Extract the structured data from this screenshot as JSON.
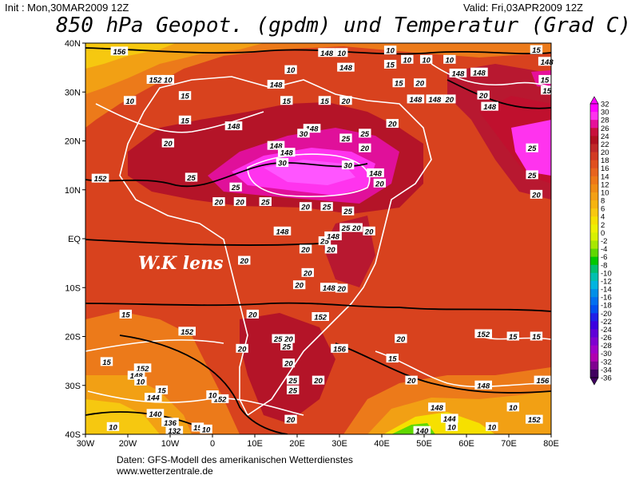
{
  "header": {
    "init": "Init : Mon,30MAR2009 12Z",
    "valid": "Valid: Fri,03APR2009 12Z",
    "title": "850 hPa Geopot. (gpdm) und Temperatur (Grad C)"
  },
  "map": {
    "lat_labels": [
      "40N",
      "30N",
      "20N",
      "10N",
      "EQ",
      "10S",
      "20S",
      "30S",
      "40S"
    ],
    "lon_labels": [
      "30W",
      "20W",
      "10W",
      "0",
      "10E",
      "20E",
      "30E",
      "40E",
      "50E",
      "60E",
      "70E",
      "80E"
    ],
    "watermark": "W.K lens",
    "contour_labels": [
      {
        "text": "156",
        "lon": -22,
        "lat": 38.3
      },
      {
        "text": "152",
        "lon": -13.5,
        "lat": 32.5
      },
      {
        "text": "10",
        "lon": -10.5,
        "lat": 32.5
      },
      {
        "text": "15",
        "lon": -6.5,
        "lat": 29.2
      },
      {
        "text": "10",
        "lon": -19.5,
        "lat": 28.2
      },
      {
        "text": "15",
        "lon": -6.5,
        "lat": 24.2
      },
      {
        "text": "20",
        "lon": -10.5,
        "lat": 19.5
      },
      {
        "text": "148",
        "lon": 5,
        "lat": 23
      },
      {
        "text": "148",
        "lon": 15,
        "lat": 31.5
      },
      {
        "text": "10",
        "lon": 18.5,
        "lat": 34.5
      },
      {
        "text": "148",
        "lon": 27,
        "lat": 38
      },
      {
        "text": "148",
        "lon": 31.5,
        "lat": 35
      },
      {
        "text": "10",
        "lon": 30.5,
        "lat": 38
      },
      {
        "text": "148",
        "lon": 23.5,
        "lat": 22.5
      },
      {
        "text": "148",
        "lon": 15,
        "lat": 19
      },
      {
        "text": "148",
        "lon": 17.5,
        "lat": 17.6
      },
      {
        "text": "30",
        "lon": 21.5,
        "lat": 21.5
      },
      {
        "text": "25",
        "lon": 31.5,
        "lat": 20.5
      },
      {
        "text": "25",
        "lon": 36,
        "lat": 21.5
      },
      {
        "text": "20",
        "lon": 31.5,
        "lat": 28.2
      },
      {
        "text": "15",
        "lon": 17.5,
        "lat": 28.2
      },
      {
        "text": "15",
        "lon": 26.5,
        "lat": 28.2
      },
      {
        "text": "20",
        "lon": 36,
        "lat": 18.5
      },
      {
        "text": "30",
        "lon": 16.5,
        "lat": 15.5
      },
      {
        "text": "30",
        "lon": 32,
        "lat": 15
      },
      {
        "text": "148",
        "lon": 38.5,
        "lat": 13.4
      },
      {
        "text": "20",
        "lon": 39.5,
        "lat": 11.3
      },
      {
        "text": "152",
        "lon": -26.5,
        "lat": 12.3
      },
      {
        "text": "25",
        "lon": -5,
        "lat": 12.5
      },
      {
        "text": "25",
        "lon": 5.5,
        "lat": 10.5
      },
      {
        "text": "20",
        "lon": 1.5,
        "lat": 7.5
      },
      {
        "text": "20",
        "lon": 6.5,
        "lat": 7.5
      },
      {
        "text": "25",
        "lon": 12.5,
        "lat": 7.5
      },
      {
        "text": "20",
        "lon": 22,
        "lat": 6.5
      },
      {
        "text": "25",
        "lon": 27,
        "lat": 6.5
      },
      {
        "text": "25",
        "lon": 32,
        "lat": 5.6
      },
      {
        "text": "20",
        "lon": 34,
        "lat": 2.2
      },
      {
        "text": "25",
        "lon": 31.5,
        "lat": 2.2
      },
      {
        "text": "20",
        "lon": 37,
        "lat": 1.5
      },
      {
        "text": "148",
        "lon": 16.5,
        "lat": 1.5
      },
      {
        "text": "25",
        "lon": 26.5,
        "lat": -0.5
      },
      {
        "text": "148",
        "lon": 28.5,
        "lat": 0.5
      },
      {
        "text": "20",
        "lon": 22,
        "lat": -2.2
      },
      {
        "text": "20",
        "lon": 28,
        "lat": -2.2
      },
      {
        "text": "20",
        "lon": 7.5,
        "lat": -4.5
      },
      {
        "text": "20",
        "lon": 22.5,
        "lat": -7
      },
      {
        "text": "20",
        "lon": 20.5,
        "lat": -9.5
      },
      {
        "text": "148",
        "lon": 27.5,
        "lat": -10
      },
      {
        "text": "20",
        "lon": 30.5,
        "lat": -10.2
      },
      {
        "text": "15",
        "lon": -20.5,
        "lat": -15.5
      },
      {
        "text": "20",
        "lon": 9.5,
        "lat": -15.5
      },
      {
        "text": "152",
        "lon": 25.5,
        "lat": -16
      },
      {
        "text": "152",
        "lon": -6,
        "lat": -19
      },
      {
        "text": "25",
        "lon": 15.5,
        "lat": -20.5
      },
      {
        "text": "20",
        "lon": 18,
        "lat": -20.5
      },
      {
        "text": "25",
        "lon": 17.5,
        "lat": -22
      },
      {
        "text": "20",
        "lon": 7,
        "lat": -22.5
      },
      {
        "text": "156",
        "lon": 30,
        "lat": -22.5
      },
      {
        "text": "20",
        "lon": 44.5,
        "lat": -20.5
      },
      {
        "text": "15",
        "lon": 42.5,
        "lat": -24.5
      },
      {
        "text": "15",
        "lon": -25,
        "lat": -25.2
      },
      {
        "text": "20",
        "lon": 18,
        "lat": -25.5
      },
      {
        "text": "152",
        "lon": 64,
        "lat": -19.5
      },
      {
        "text": "15",
        "lon": 71,
        "lat": -20
      },
      {
        "text": "15",
        "lon": 76.5,
        "lat": -20
      },
      {
        "text": "152",
        "lon": -16.5,
        "lat": -26.5
      },
      {
        "text": "148",
        "lon": -18,
        "lat": -28
      },
      {
        "text": "25",
        "lon": 19,
        "lat": -29
      },
      {
        "text": "20",
        "lon": 25,
        "lat": -29
      },
      {
        "text": "25",
        "lon": 19,
        "lat": -31
      },
      {
        "text": "20",
        "lon": 47,
        "lat": -29
      },
      {
        "text": "15",
        "lon": -12,
        "lat": -31
      },
      {
        "text": "10",
        "lon": -17,
        "lat": -29.2
      },
      {
        "text": "144",
        "lon": -14,
        "lat": -32.5
      },
      {
        "text": "152",
        "lon": 1.8,
        "lat": -32.8
      },
      {
        "text": "10",
        "lon": 0,
        "lat": -32
      },
      {
        "text": "148",
        "lon": 64,
        "lat": -30
      },
      {
        "text": "156",
        "lon": 78,
        "lat": -29
      },
      {
        "text": "140",
        "lon": -13.5,
        "lat": -35.8
      },
      {
        "text": "148",
        "lon": 53,
        "lat": -34.5
      },
      {
        "text": "10",
        "lon": 71,
        "lat": -34.5
      },
      {
        "text": "136",
        "lon": -10,
        "lat": -37.6
      },
      {
        "text": "20",
        "lon": 18.5,
        "lat": -37
      },
      {
        "text": "152",
        "lon": 76,
        "lat": -37
      },
      {
        "text": "144",
        "lon": 56,
        "lat": -36.8
      },
      {
        "text": "132",
        "lon": -9,
        "lat": -39.3
      },
      {
        "text": "140",
        "lon": 49.5,
        "lat": -39.3
      },
      {
        "text": "10",
        "lon": -23.5,
        "lat": -38.5
      },
      {
        "text": "10",
        "lon": 56.5,
        "lat": -38.5
      },
      {
        "text": "10",
        "lon": 66,
        "lat": -38.5
      },
      {
        "text": "148",
        "lon": 48,
        "lat": 28.5
      },
      {
        "text": "10",
        "lon": 46,
        "lat": 36.6
      },
      {
        "text": "10",
        "lon": 50.5,
        "lat": 36.6
      },
      {
        "text": "10",
        "lon": 56,
        "lat": 36.6
      },
      {
        "text": "10",
        "lon": 42,
        "lat": 38.5
      },
      {
        "text": "15",
        "lon": 42,
        "lat": 35.6
      },
      {
        "text": "148",
        "lon": 58,
        "lat": 33.8
      },
      {
        "text": "15",
        "lon": 44,
        "lat": 31.8
      },
      {
        "text": "20",
        "lon": 49,
        "lat": 31.8
      },
      {
        "text": "148",
        "lon": 52.5,
        "lat": 28.5
      },
      {
        "text": "20",
        "lon": 56,
        "lat": 28.5
      },
      {
        "text": "148",
        "lon": 65.5,
        "lat": 27
      },
      {
        "text": "148",
        "lon": 63,
        "lat": 34
      },
      {
        "text": "20",
        "lon": 64,
        "lat": 29.3
      },
      {
        "text": "148",
        "lon": 79,
        "lat": 36.2
      },
      {
        "text": "15",
        "lon": 76.5,
        "lat": 38.6
      },
      {
        "text": "15",
        "lon": 78.5,
        "lat": 32.5
      },
      {
        "text": "15",
        "lon": 79,
        "lat": 30.3
      },
      {
        "text": "20",
        "lon": 42.5,
        "lat": 23.5
      },
      {
        "text": "25",
        "lon": 75.5,
        "lat": 18.5
      },
      {
        "text": "25",
        "lon": 75.5,
        "lat": 13
      },
      {
        "text": "20",
        "lon": 76.5,
        "lat": 9
      },
      {
        "text": "15",
        "lon": -3.5,
        "lat": -38.6
      },
      {
        "text": "10",
        "lon": -1.5,
        "lat": -39
      }
    ]
  },
  "legend": {
    "ticks": [
      "32",
      "30",
      "28",
      "26",
      "24",
      "22",
      "20",
      "18",
      "16",
      "14",
      "12",
      "10",
      "8",
      "6",
      "4",
      "2",
      "0",
      "-2",
      "-4",
      "-6",
      "-8",
      "-10",
      "-12",
      "-14",
      "-16",
      "-18",
      "-20",
      "-22",
      "-24",
      "-26",
      "-28",
      "-30",
      "-32",
      "-34",
      "-36"
    ],
    "colors": [
      "#ff00ff",
      "#ff33ee",
      "#e6109a",
      "#c8103c",
      "#b01020",
      "#c02828",
      "#d23a22",
      "#e0501e",
      "#e8641e",
      "#ee7818",
      "#f08c14",
      "#f4a014",
      "#f6b410",
      "#f8c810",
      "#f6e000",
      "#eef000",
      "#d8f000",
      "#a8e800",
      "#60d800",
      "#00c800",
      "#00c070",
      "#00c0b0",
      "#00b4e0",
      "#0090e8",
      "#0070f0",
      "#0050f0",
      "#2020e8",
      "#3c00e0",
      "#6000d8",
      "#8000d0",
      "#a000c8",
      "#b000b0",
      "#800090",
      "#400060"
    ]
  },
  "footer": {
    "line1": "Daten: GFS-Modell des amerikanischen Wetterdienstes",
    "line2": "www.wetterzentrale.de"
  }
}
